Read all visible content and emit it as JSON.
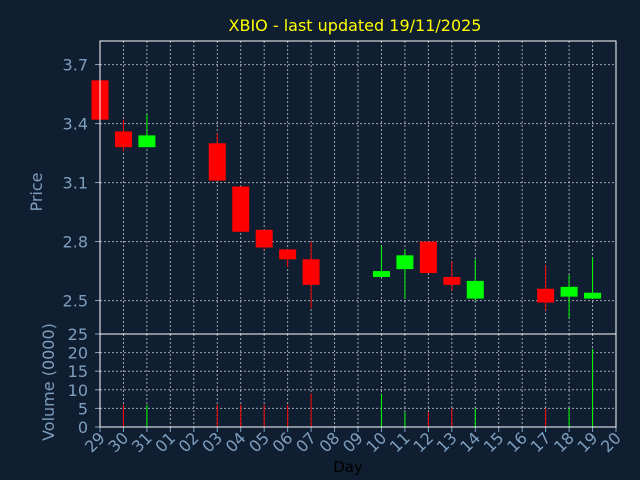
{
  "chart_data": {
    "type": "candlestick",
    "title": "XBIO - last updated 19/11/2025",
    "xlabel": "Day",
    "ylabel": "Price",
    "volume_label": "Volume (0000)",
    "x_ticks": [
      "29",
      "30",
      "31",
      "01",
      "02",
      "03",
      "04",
      "05",
      "06",
      "07",
      "08",
      "09",
      "10",
      "11",
      "12",
      "13",
      "14",
      "15",
      "16",
      "17",
      "18",
      "19",
      "20"
    ],
    "price_ylim": [
      2.33,
      3.82
    ],
    "price_ticks": [
      2.5,
      2.8,
      3.1,
      3.4,
      3.7
    ],
    "volume_ylim": [
      0,
      25
    ],
    "volume_ticks": [
      0,
      5,
      10,
      15,
      20,
      25
    ],
    "grid": true,
    "colors": {
      "up": "#00ff00",
      "down": "#ff0000",
      "title": "#ffff00",
      "axis": "#7f9fbf",
      "grid": "#ffffff",
      "background": "#0f1e30"
    },
    "candles": [
      {
        "day": "29",
        "x": 0,
        "open": 3.62,
        "high": 3.62,
        "low": 3.42,
        "close": 3.42,
        "volume": 0
      },
      {
        "day": "30",
        "x": 1,
        "open": 3.36,
        "high": 3.42,
        "low": 3.26,
        "close": 3.28,
        "volume": 6
      },
      {
        "day": "31",
        "x": 2,
        "open": 3.28,
        "high": 3.45,
        "low": 3.28,
        "close": 3.34,
        "volume": 6
      },
      {
        "day": "03",
        "x": 5,
        "open": 3.3,
        "high": 3.35,
        "low": 3.11,
        "close": 3.11,
        "volume": 6
      },
      {
        "day": "04",
        "x": 6,
        "open": 3.08,
        "high": 3.08,
        "low": 2.85,
        "close": 2.85,
        "volume": 6
      },
      {
        "day": "05",
        "x": 7,
        "open": 2.86,
        "high": 2.86,
        "low": 2.76,
        "close": 2.77,
        "volume": 6
      },
      {
        "day": "06",
        "x": 8,
        "open": 2.76,
        "high": 2.76,
        "low": 2.67,
        "close": 2.71,
        "volume": 6
      },
      {
        "day": "07",
        "x": 9,
        "open": 2.71,
        "high": 2.8,
        "low": 2.46,
        "close": 2.58,
        "volume": 9
      },
      {
        "day": "10",
        "x": 12,
        "open": 2.62,
        "high": 2.78,
        "low": 2.62,
        "close": 2.65,
        "volume": 9
      },
      {
        "day": "11",
        "x": 13,
        "open": 2.66,
        "high": 2.76,
        "low": 2.51,
        "close": 2.73,
        "volume": 4
      },
      {
        "day": "12",
        "x": 14,
        "open": 2.8,
        "high": 2.8,
        "low": 2.64,
        "close": 2.64,
        "volume": 4
      },
      {
        "day": "13",
        "x": 15,
        "open": 2.62,
        "high": 2.7,
        "low": 2.55,
        "close": 2.58,
        "volume": 5
      },
      {
        "day": "14",
        "x": 16,
        "open": 2.51,
        "high": 2.71,
        "low": 2.5,
        "close": 2.6,
        "volume": 5
      },
      {
        "day": "17",
        "x": 19,
        "open": 2.56,
        "high": 2.68,
        "low": 2.45,
        "close": 2.49,
        "volume": 5
      },
      {
        "day": "18",
        "x": 20,
        "open": 2.52,
        "high": 2.63,
        "low": 2.41,
        "close": 2.57,
        "volume": 5
      },
      {
        "day": "19",
        "x": 21,
        "open": 2.51,
        "high": 2.72,
        "low": 2.51,
        "close": 2.54,
        "volume": 21
      }
    ]
  }
}
